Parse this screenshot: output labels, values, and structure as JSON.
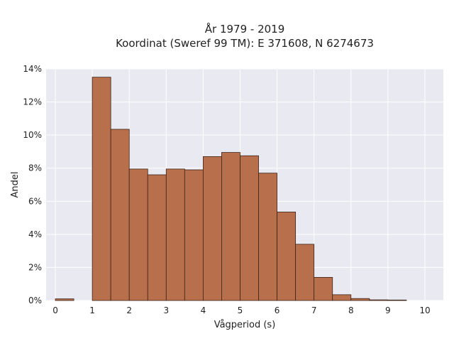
{
  "chart_data": {
    "type": "bar",
    "title_line1": "År 1979 - 2019",
    "title_line2": "Koordinat (Sweref 99 TM): E 371608, N 6274673",
    "xlabel": "Vågperiod (s)",
    "ylabel": "Andel",
    "xlim": [
      -0.25,
      10.5
    ],
    "ylim": [
      0,
      14
    ],
    "x_ticks": [
      "0",
      "1",
      "2",
      "3",
      "4",
      "5",
      "6",
      "7",
      "8",
      "9",
      "10"
    ],
    "y_ticks": [
      "0%",
      "2%",
      "4%",
      "6%",
      "8%",
      "10%",
      "12%",
      "14%"
    ],
    "bin_width": 0.5,
    "bins": [
      {
        "start": 0.0,
        "value": 0.1
      },
      {
        "start": 1.0,
        "value": 13.5
      },
      {
        "start": 1.5,
        "value": 10.35
      },
      {
        "start": 2.0,
        "value": 7.95
      },
      {
        "start": 2.5,
        "value": 7.6
      },
      {
        "start": 3.0,
        "value": 7.95
      },
      {
        "start": 3.5,
        "value": 7.9
      },
      {
        "start": 4.0,
        "value": 8.7
      },
      {
        "start": 4.5,
        "value": 8.95
      },
      {
        "start": 5.0,
        "value": 8.75
      },
      {
        "start": 5.5,
        "value": 7.7
      },
      {
        "start": 6.0,
        "value": 5.35
      },
      {
        "start": 6.5,
        "value": 3.4
      },
      {
        "start": 7.0,
        "value": 1.4
      },
      {
        "start": 7.5,
        "value": 0.35
      },
      {
        "start": 8.0,
        "value": 0.12
      },
      {
        "start": 8.5,
        "value": 0.04
      },
      {
        "start": 9.0,
        "value": 0.03
      }
    ],
    "grid": true,
    "colors": {
      "background": "#e9e9f1",
      "grid": "#ffffff",
      "bar_fill": "#b86f4b",
      "bar_edge": "#3d2418"
    }
  }
}
